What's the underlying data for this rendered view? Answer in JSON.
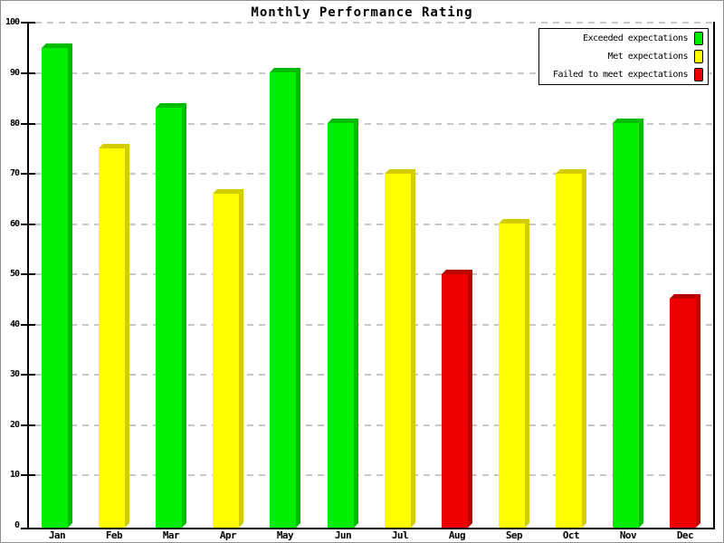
{
  "chart_data": {
    "type": "bar",
    "title": "Monthly Performance Rating",
    "categories": [
      "Jan",
      "Feb",
      "Mar",
      "Apr",
      "May",
      "Jun",
      "Jul",
      "Aug",
      "Sep",
      "Oct",
      "Nov",
      "Dec"
    ],
    "values": [
      96,
      76,
      84,
      67,
      91,
      81,
      71,
      51,
      61,
      71,
      81,
      46
    ],
    "bar_series": [
      "exceeded",
      "met",
      "exceeded",
      "met",
      "exceeded",
      "exceeded",
      "met",
      "failed",
      "met",
      "met",
      "exceeded",
      "failed"
    ],
    "xlabel": "",
    "ylabel": "",
    "ylim": [
      0,
      100
    ],
    "y_ticks": [
      0,
      10,
      20,
      30,
      40,
      50,
      60,
      70,
      80,
      90,
      100
    ],
    "y_tick_labels": [
      "0",
      "10",
      "20",
      "30",
      "40",
      "50",
      "60",
      "70",
      "80",
      "90",
      "100"
    ],
    "grid": "horizontal-dashed",
    "bar_style": "3d",
    "legend_position": "top-right",
    "legend_entries": [
      {
        "id": "exceeded",
        "label": "Exceeded expectations",
        "color": "#00EE00"
      },
      {
        "id": "met",
        "label": "Met expectations",
        "color": "#FFFF00"
      },
      {
        "id": "failed",
        "label": "Failed to meet expectations",
        "color": "#EE0000"
      }
    ],
    "colors": {
      "exceeded": {
        "face": "#00EE00",
        "shade": "#00BB00"
      },
      "met": {
        "face": "#FFFF00",
        "shade": "#D2CC00"
      },
      "failed": {
        "face": "#EE0000",
        "shade": "#BB0000"
      },
      "gridline": "#C8C8C8",
      "axis": "#000000",
      "background": "#FFFFFF",
      "outer_border": "#909090"
    }
  }
}
